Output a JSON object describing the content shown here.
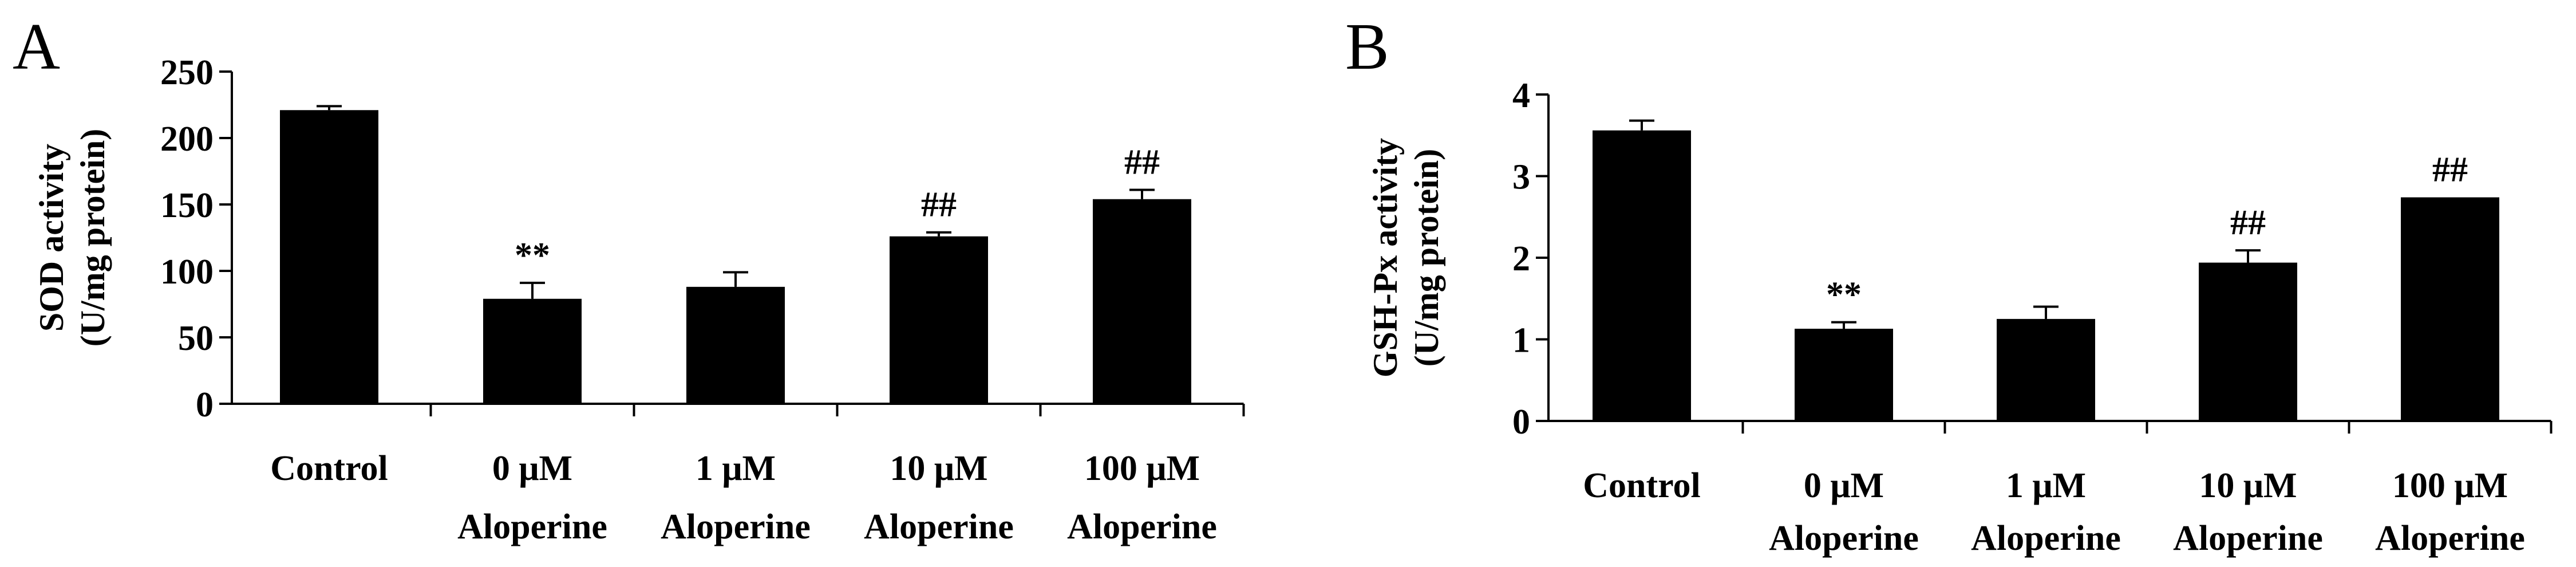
{
  "chart_data": [
    {
      "panel": "A",
      "type": "bar",
      "xlabel": "",
      "ylabel_line1": "SOD activity",
      "ylabel_line2": "(U/mg protein)",
      "ylim": [
        0,
        250
      ],
      "yticks": [
        0,
        50,
        100,
        150,
        200,
        250
      ],
      "categories": [
        [
          "Control"
        ],
        [
          "0 μM",
          "Aloperine"
        ],
        [
          "1 μM",
          "Aloperine"
        ],
        [
          "10 μM",
          "Aloperine"
        ],
        [
          "100 μM",
          "Aloperine"
        ]
      ],
      "values": [
        221,
        79,
        88,
        126,
        154
      ],
      "errors": [
        3,
        12,
        11,
        3,
        7
      ],
      "annotations": [
        "",
        "**",
        "",
        "##",
        "##"
      ],
      "grid": false,
      "bar_color": "#000000"
    },
    {
      "panel": "B",
      "type": "bar",
      "xlabel": "",
      "ylabel_line1": "GSH-Px activity",
      "ylabel_line2": "(U/mg protein)",
      "ylim": [
        0,
        4
      ],
      "yticks": [
        0,
        1,
        2,
        3,
        4
      ],
      "categories": [
        [
          "Control"
        ],
        [
          "0 μM",
          "Aloperine"
        ],
        [
          "1 μM",
          "Aloperine"
        ],
        [
          "10 μM",
          "Aloperine"
        ],
        [
          "100 μM",
          "Aloperine"
        ]
      ],
      "values": [
        3.56,
        1.13,
        1.25,
        1.94,
        2.74
      ],
      "errors": [
        0.12,
        0.08,
        0.15,
        0.15,
        0
      ],
      "annotations": [
        "",
        "**",
        "",
        "##",
        "##"
      ],
      "grid": false,
      "bar_color": "#000000"
    }
  ]
}
